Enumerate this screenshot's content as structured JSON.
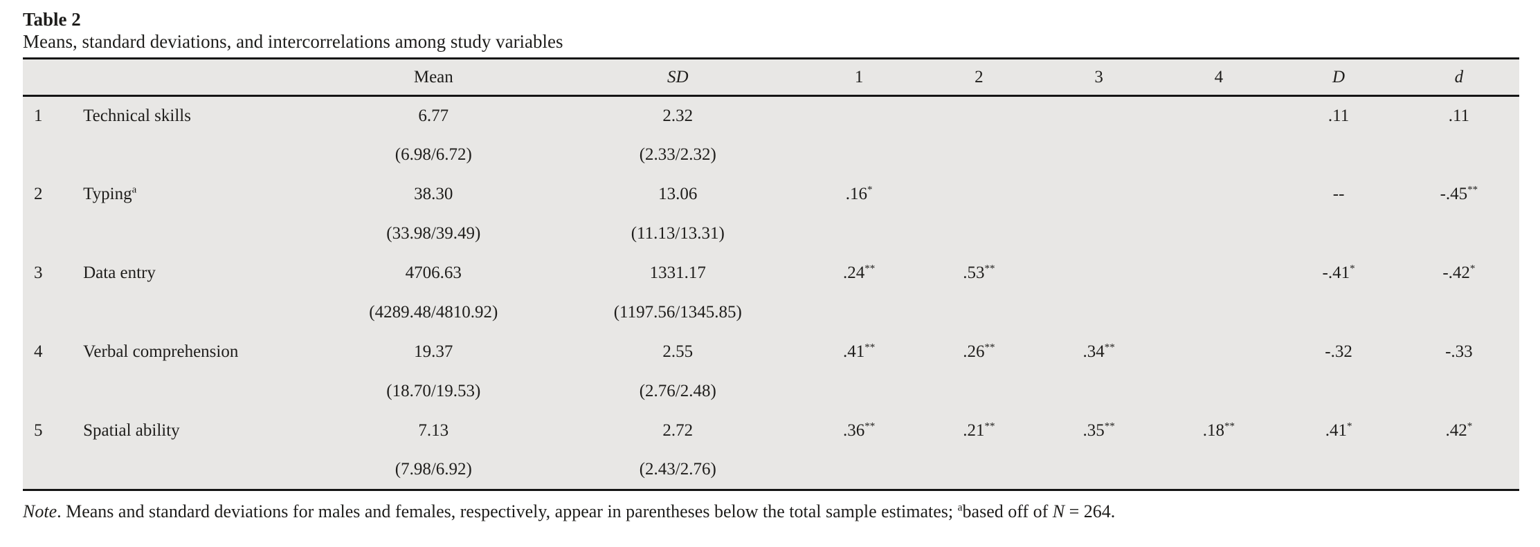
{
  "page": {
    "title": "Table 2",
    "subtitle": "Means, standard deviations, and intercorrelations among study variables"
  },
  "table": {
    "headers": {
      "num": "",
      "variable": "",
      "mean": "Mean",
      "sd": "SD",
      "c1": "1",
      "c2": "2",
      "c3": "3",
      "c4": "4",
      "bigd": "D",
      "smalld": "d"
    },
    "rows": [
      {
        "num": "1",
        "label": "Technical skills",
        "label_sup": "",
        "mean": "6.77",
        "mean_paren": "(6.98/6.72)",
        "sd": "2.32",
        "sd_paren": "(2.33/2.32)",
        "c1": "",
        "c2": "",
        "c3": "",
        "c4": "",
        "bigd": ".11",
        "smalld": ".11"
      },
      {
        "num": "2",
        "label": "Typing",
        "label_sup": "a",
        "mean": "38.30",
        "mean_paren": "(33.98/39.49)",
        "sd": "13.06",
        "sd_paren": "(11.13/13.31)",
        "c1": ".16*",
        "c2": "",
        "c3": "",
        "c4": "",
        "bigd": "--",
        "smalld": "-.45**"
      },
      {
        "num": "3",
        "label": "Data entry",
        "label_sup": "",
        "mean": "4706.63",
        "mean_paren": "(4289.48/4810.92)",
        "sd": "1331.17",
        "sd_paren": "(1197.56/1345.85)",
        "c1": ".24**",
        "c2": ".53**",
        "c3": "",
        "c4": "",
        "bigd": "-.41*",
        "smalld": "-.42*"
      },
      {
        "num": "4",
        "label": "Verbal comprehension",
        "label_sup": "",
        "mean": "19.37",
        "mean_paren": "(18.70/19.53)",
        "sd": "2.55",
        "sd_paren": "(2.76/2.48)",
        "c1": ".41**",
        "c2": ".26**",
        "c3": ".34**",
        "c4": "",
        "bigd": "-.32",
        "smalld": "-.33"
      },
      {
        "num": "5",
        "label": "Spatial ability",
        "label_sup": "",
        "mean": "7.13",
        "mean_paren": "(7.98/6.92)",
        "sd": "2.72",
        "sd_paren": "(2.43/2.76)",
        "c1": ".36**",
        "c2": ".21**",
        "c3": ".35**",
        "c4": ".18**",
        "bigd": ".41*",
        "smalld": ".42*"
      }
    ]
  },
  "note_parts": [
    {
      "text": "Note",
      "style": "italic"
    },
    {
      "text": ". Means and standard deviations for males and females, respectively, appear in parentheses below the total sample estimates; ",
      "style": "normal"
    },
    {
      "text": "a",
      "style": "sup"
    },
    {
      "text": "based off of ",
      "style": "normal"
    },
    {
      "text": "N",
      "style": "italic"
    },
    {
      "text": " = 264.",
      "style": "normal"
    }
  ]
}
